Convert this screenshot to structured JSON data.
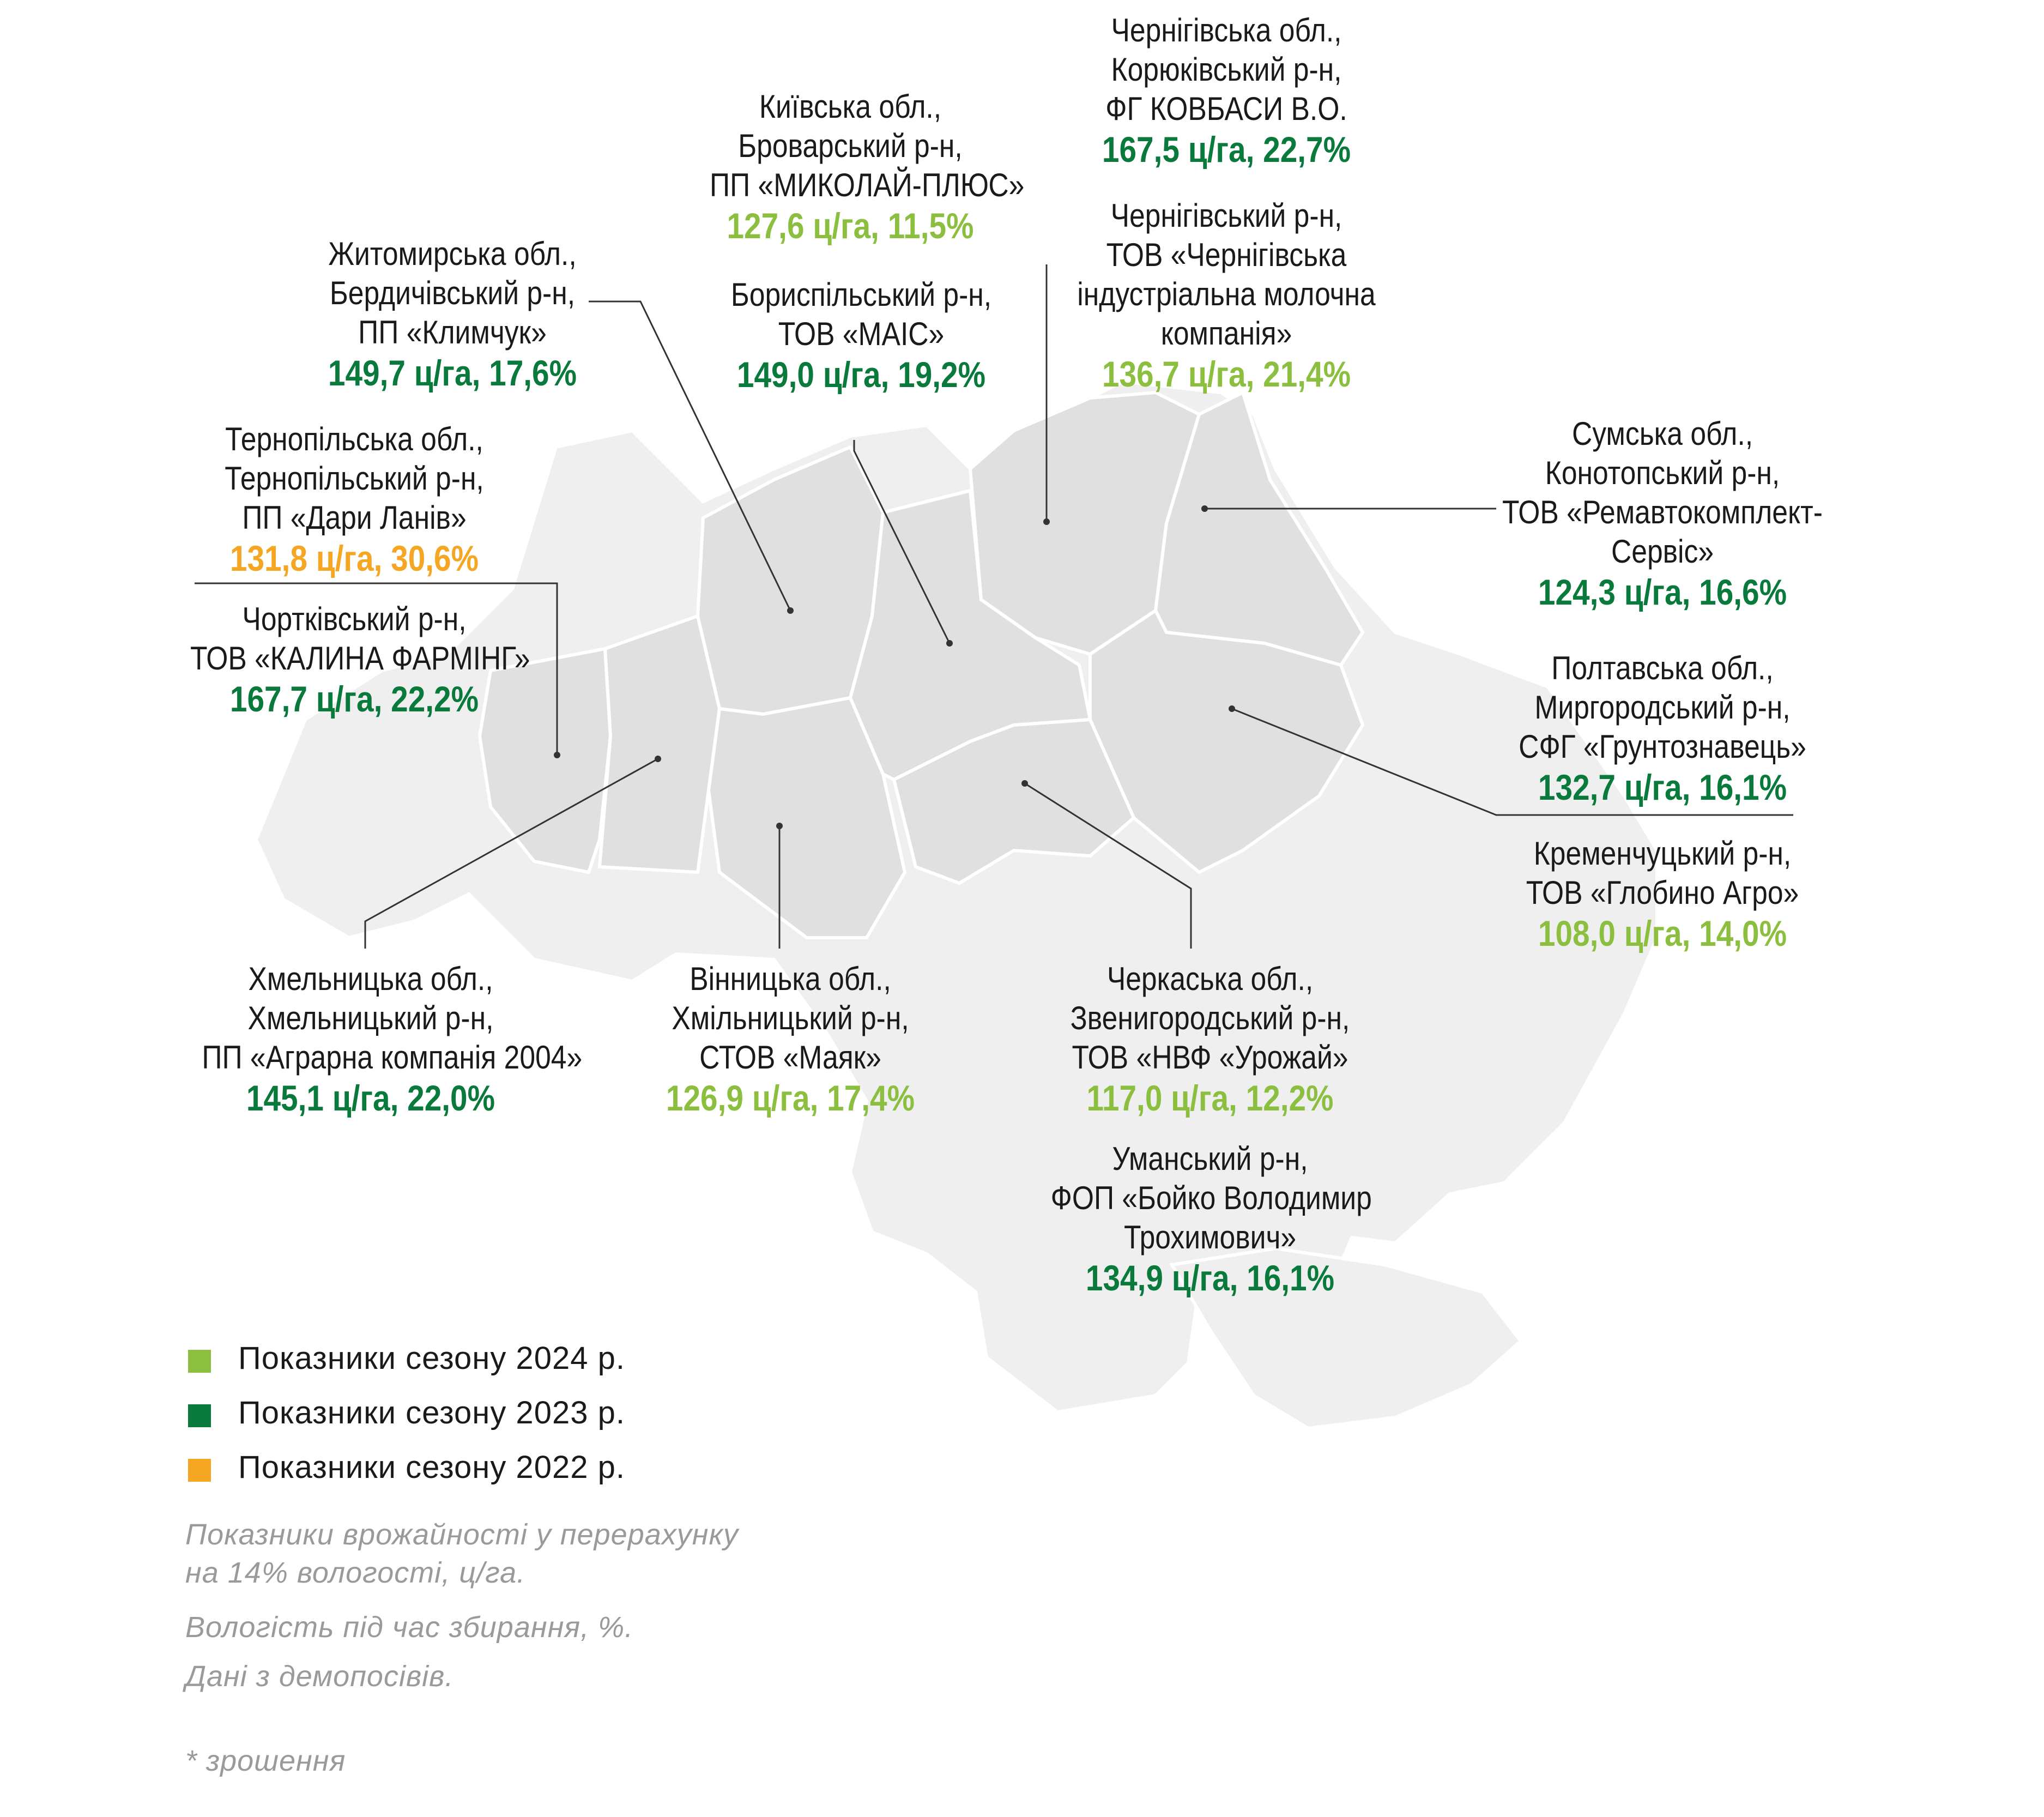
{
  "colors": {
    "season_2024": "#8cbf3f",
    "season_2023": "#0a7a3c",
    "season_2022": "#f5a623",
    "region_highlight": "#e0e0e0",
    "region_base": "#efefef",
    "leader_line": "#333333"
  },
  "callouts": [
    {
      "id": "chernihiv-koriukivka",
      "lines": [
        "Чернігівська обл.,",
        "Корюківський р-н,",
        "ФГ КОВБАСИ В.О."
      ],
      "value": "167,5 ц/га, 22,7%",
      "season": "2023"
    },
    {
      "id": "kyiv-brovary",
      "lines": [
        "Київська обл.,",
        "Броварський  р-н,",
        "ПП «МИКОЛАЙ-ПЛЮС»"
      ],
      "value": "127,6 ц/га, 11,5%",
      "season": "2024"
    },
    {
      "id": "chernihiv-chernihiv",
      "lines": [
        "Чернігівський р-н,",
        "ТОВ «Чернігівська",
        "індустріальна молочна",
        "компанія»"
      ],
      "value": "136,7 ц/га, 21,4%",
      "season": "2024"
    },
    {
      "id": "zhytomyr-berdychiv",
      "lines": [
        "Житомирська обл.,",
        "Бердичівський р-н,",
        "ПП «Климчук»"
      ],
      "value": "149,7 ц/га, 17,6%",
      "season": "2023"
    },
    {
      "id": "kyiv-boryspil",
      "lines": [
        "Бориспільський р-н,",
        "ТОВ «МАІС»"
      ],
      "value": "149,0 ц/га, 19,2%",
      "season": "2023"
    },
    {
      "id": "ternopil-ternopil",
      "lines": [
        "Тернопільська обл.,",
        "Тернопільський р-н,",
        "ПП «Дари Ланів»"
      ],
      "value": "131,8 ц/га, 30,6%",
      "season": "2022"
    },
    {
      "id": "ternopil-chortkiv",
      "lines": [
        "Чортківський р-н,",
        "ТОВ «КАЛИНА ФАРМІНГ»"
      ],
      "value": "167,7 ц/га, 22,2%",
      "season": "2023"
    },
    {
      "id": "sumy-konotop",
      "lines": [
        "Сумська обл.,",
        "Конотопський р-н,",
        "ТОВ «Ремавтокомплект-",
        "Сервіс»"
      ],
      "value": "124,3 ц/га, 16,6%",
      "season": "2023"
    },
    {
      "id": "poltava-myrhorod",
      "lines": [
        "Полтавська обл.,",
        "Миргородський р-н,",
        "СФГ «Грунтознавець»"
      ],
      "value": "132,7 ц/га, 16,1%",
      "season": "2023"
    },
    {
      "id": "poltava-kremenchuk",
      "lines": [
        "Кременчуцький р-н,",
        "ТОВ «Глобино Агро»"
      ],
      "value": "108,0 ц/га, 14,0%",
      "season": "2024"
    },
    {
      "id": "khmelnytskyi",
      "lines": [
        "Хмельницька обл.,",
        "Хмельницький р-н,",
        "ПП «Аграрна компанія 2004»"
      ],
      "value": "145,1 ц/га, 22,0%",
      "season": "2023"
    },
    {
      "id": "vinnytsia-khmilnyk",
      "lines": [
        "Вінницька обл.,",
        "Хмільницький р-н,",
        "СТОВ «Маяк»"
      ],
      "value": "126,9 ц/га, 17,4%",
      "season": "2024"
    },
    {
      "id": "cherkasy-zvenyhorod",
      "lines": [
        "Черкаська обл.,",
        "Звенигородський р-н,",
        "ТОВ «НВФ «Урожай»"
      ],
      "value": "117,0 ц/га, 12,2%",
      "season": "2024"
    },
    {
      "id": "cherkasy-uman",
      "lines": [
        "Уманський р-н,",
        "ФОП «Бойко Володимир",
        "Трохимович»"
      ],
      "value": "134,9 ц/га, 16,1%",
      "season": "2023"
    }
  ],
  "legend": [
    {
      "label": "Показники сезону 2024 р.",
      "season": "2024"
    },
    {
      "label": "Показники сезону 2023 р.",
      "season": "2023"
    },
    {
      "label": "Показники сезону 2022 р.",
      "season": "2022"
    }
  ],
  "notes": [
    "Показники врожайності у перерахунку",
    "на 14% вологості, ц/га.",
    "Вологість під час збирання, %.",
    "Дані з демопосівів."
  ],
  "footnote": "* зрошення"
}
